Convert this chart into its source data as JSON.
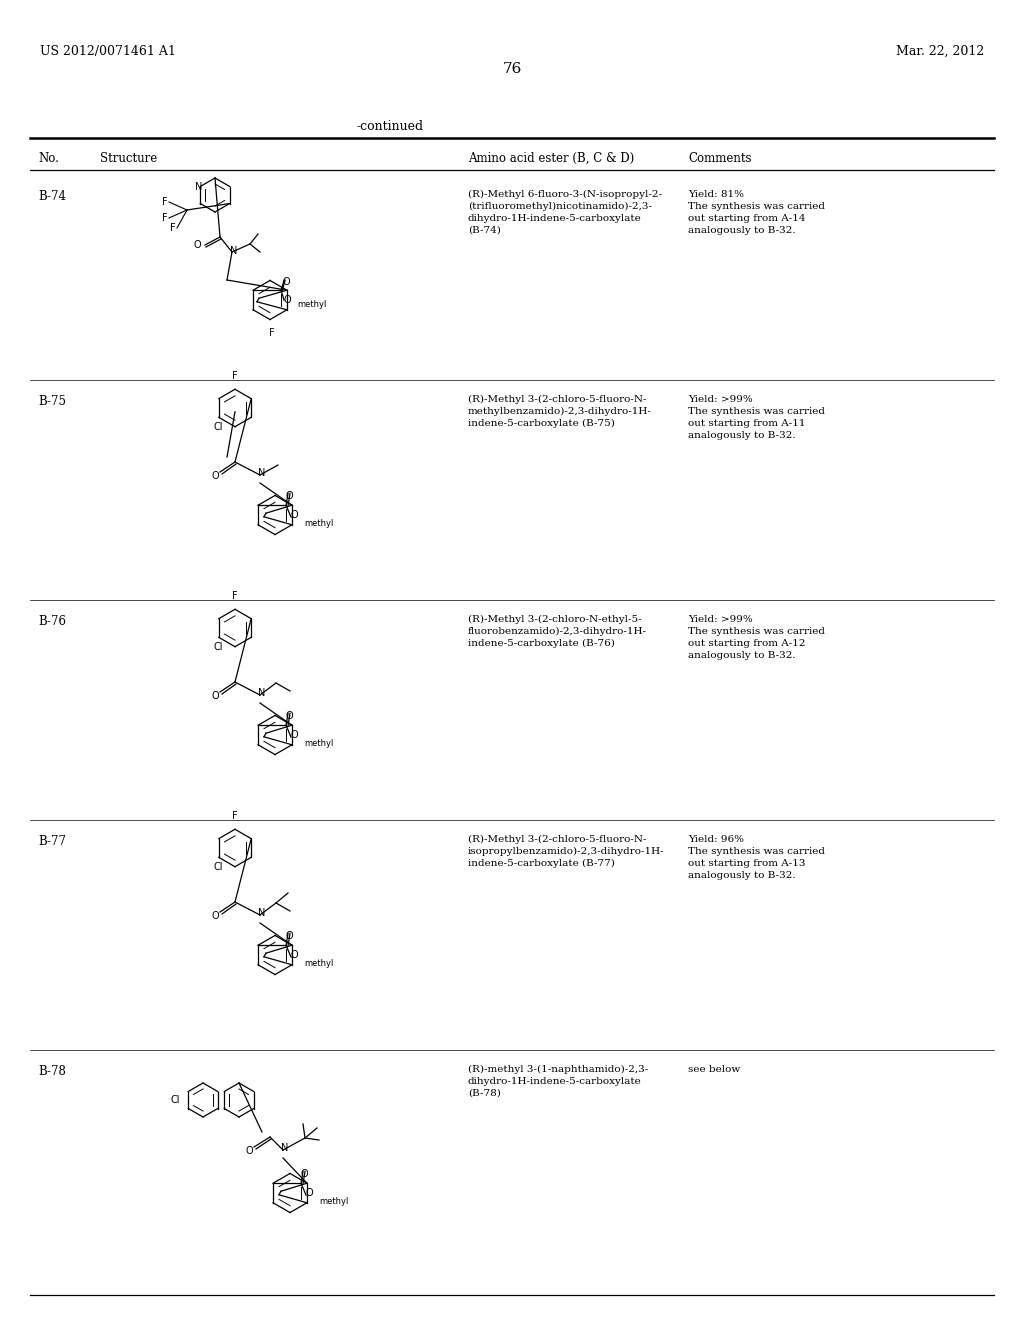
{
  "page_header_left": "US 2012/0071461 A1",
  "page_header_right": "Mar. 22, 2012",
  "page_number": "76",
  "continued_label": "-continued",
  "col_headers": [
    "No.",
    "Structure",
    "Amino acid ester (B, C & D)",
    "Comments"
  ],
  "background_color": "#ffffff",
  "text_color": "#000000",
  "header_font_size": 9,
  "body_font_size": 8,
  "compounds": [
    {
      "id": "B-74",
      "name": "(R)-Methyl 6-fluoro-3-(N-isopropyl-2-(trifluoromethyl)nicotinamido)-2,3-dihydro-1H-indene-5-carboxylate (B-74)",
      "comments": "Yield: 81%\nThe synthesis was carried out starting from A-14 analogously to B-32.",
      "structure_desc": "B74_structure"
    },
    {
      "id": "B-75",
      "name": "(R)-Methyl 3-(2-chloro-5-fluoro-N-methylbenzamido)-2,3-dihydro-1H-indene-5-carboxylate (B-75)",
      "comments": "Yield: >99%\nThe synthesis was carried out starting from A-11 analogously to B-32.",
      "structure_desc": "B75_structure"
    },
    {
      "id": "B-76",
      "name": "(R)-Methyl 3-(2-chloro-N-ethyl-5-fluorobenzamido)-2,3-dihydro-1H-indene-5-carboxylate (B-76)",
      "comments": "Yield: >99%\nThe synthesis was carried out starting from A-12 analogously to B-32.",
      "structure_desc": "B76_structure"
    },
    {
      "id": "B-77",
      "name": "(R)-Methyl 3-(2-chloro-5-fluoro-N-isopropylbenzamido)-2,3-dihydro-1H-indene-5-carboxylate (B-77)",
      "comments": "Yield: 96%\nThe synthesis was carried out starting from A-13 analogously to B-32.",
      "structure_desc": "B77_structure"
    },
    {
      "id": "B-78",
      "name": "(R)-methyl 3-(1-naphthamido)-2,3-dihydro-1H-indene-5-carboxylate (B-78)",
      "comments": "see below",
      "structure_desc": "B78_structure"
    }
  ]
}
